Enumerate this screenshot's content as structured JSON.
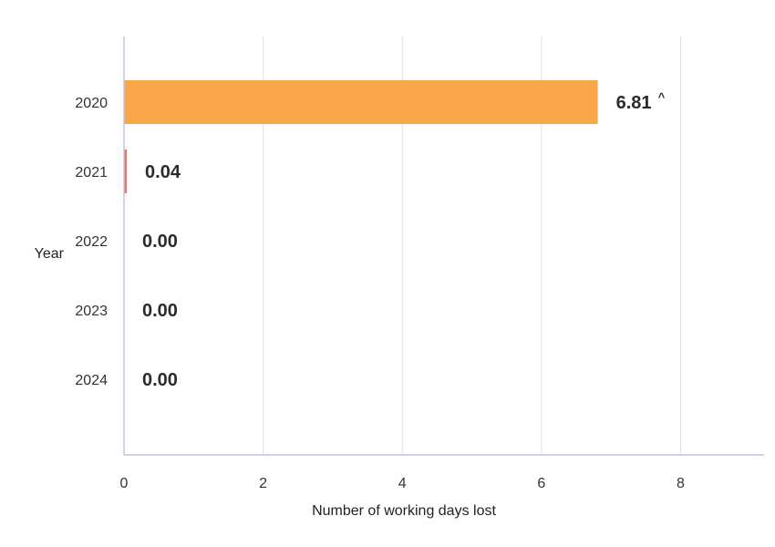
{
  "chart_data": {
    "type": "bar",
    "orientation": "horizontal",
    "title": "",
    "ylabel": "Year",
    "xlabel": "Number of working days lost",
    "categories": [
      "2020",
      "2021",
      "2022",
      "2023",
      "2024"
    ],
    "values": [
      6.81,
      0.04,
      0.0,
      0.0,
      0.0
    ],
    "data_labels": [
      "6.81",
      "0.04",
      "0.00",
      "0.00",
      "0.00"
    ],
    "data_label_notes": [
      "^",
      "",
      "",
      "",
      ""
    ],
    "bar_colors": [
      "#F9A64D",
      "#E8776B",
      "#E8776B",
      "#E8776B",
      "#E8776B"
    ],
    "xlim": [
      0,
      9.2
    ],
    "xticks": [
      0,
      2,
      4,
      6,
      8
    ],
    "xtick_labels": [
      "0",
      "2",
      "4",
      "6",
      "8"
    ],
    "grid": "vertical",
    "legend": "none",
    "colors": {
      "grid": "#E4DFEA",
      "axis": "#C9C0DA"
    }
  }
}
